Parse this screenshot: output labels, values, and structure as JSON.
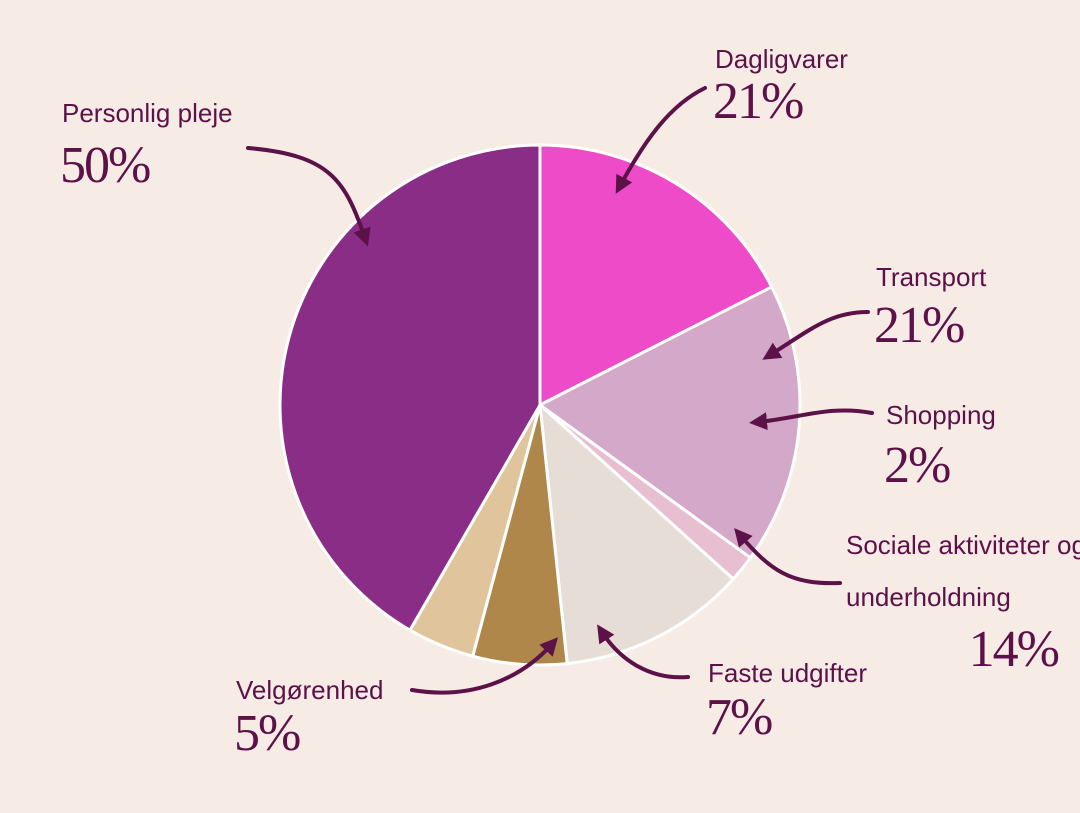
{
  "chart_data": {
    "type": "pie",
    "categories": [
      "Dagligvarer",
      "Transport",
      "Shopping",
      "Sociale aktiviteter og underholdning",
      "Faste udgifter",
      "Velgørenhed",
      "Personlig pleje"
    ],
    "values": [
      21,
      21,
      2,
      14,
      7,
      5,
      50
    ],
    "value_labels": [
      "21%",
      "21%",
      "2%",
      "14%",
      "7%",
      "5%",
      "50%"
    ],
    "colors": [
      "#ee4bc8",
      "#d4a8c8",
      "#e8bfd0",
      "#e6ddd6",
      "#b0874a",
      "#e0c49c",
      "#8a2d87"
    ]
  }
}
